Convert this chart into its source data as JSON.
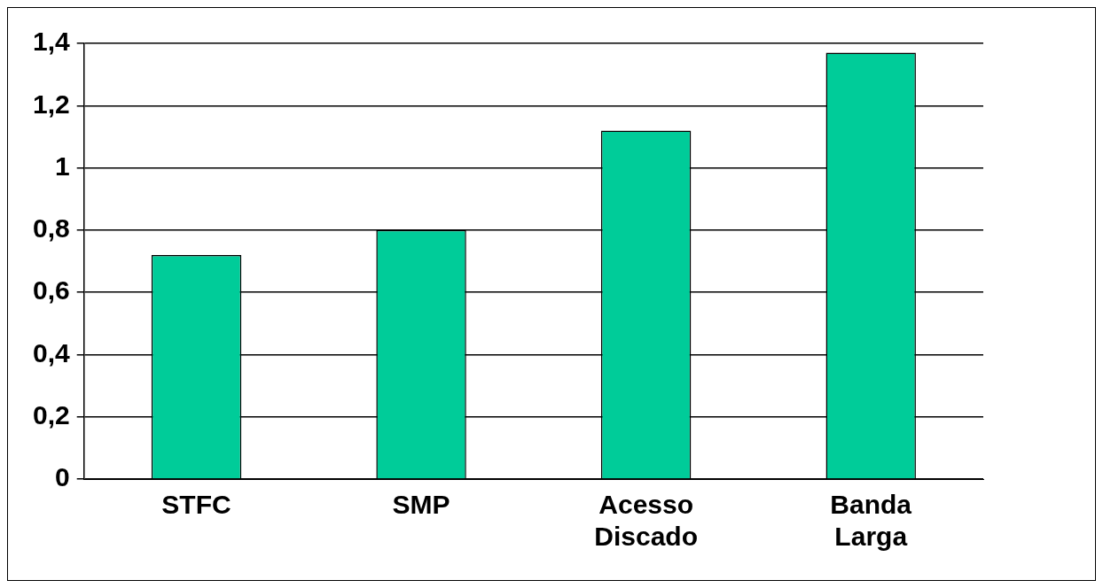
{
  "chart_data": {
    "type": "bar",
    "categories": [
      "STFC",
      "SMP",
      "Acesso Discado",
      "Banda Larga"
    ],
    "values": [
      0.72,
      0.8,
      1.12,
      1.37
    ],
    "color": "#00cc99",
    "ylim": [
      0,
      1.4
    ],
    "yticks": [
      0,
      {
        "value": 0.2,
        "label": "0,2"
      },
      {
        "value": 0.4,
        "label": "0,4"
      },
      {
        "value": 0.6,
        "label": "0,6"
      },
      {
        "value": 0.8,
        "label": "0,8"
      },
      1,
      {
        "value": 1.2,
        "label": "1,2"
      },
      {
        "value": 1.4,
        "label": "1,4"
      }
    ],
    "grid": "y",
    "legend": false
  }
}
